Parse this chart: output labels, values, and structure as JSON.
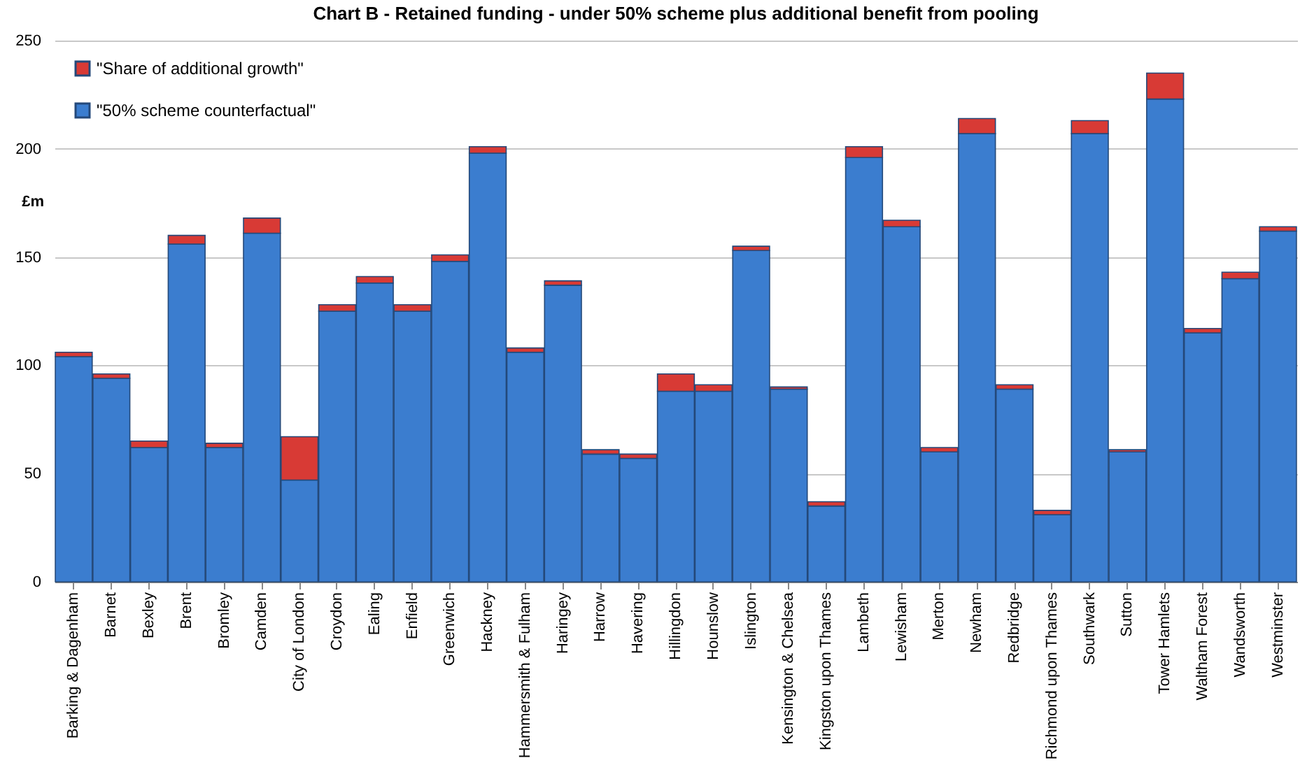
{
  "chart_data": {
    "type": "bar",
    "title": "Chart B - Retained funding - under 50% scheme plus additional benefit from pooling",
    "ylabel": "£m",
    "categories": [
      "Barking & Dagenham",
      "Barnet",
      "Bexley",
      "Brent",
      "Bromley",
      "Camden",
      "City of London",
      "Croydon",
      "Ealing",
      "Enfield",
      "Greenwich",
      "Hackney",
      "Hammersmith & Fulham",
      "Haringey",
      "Harrow",
      "Havering",
      "Hillingdon",
      "Hounslow",
      "Islington",
      "Kensington & Chelsea",
      "Kingston upon Thames",
      "Lambeth",
      "Lewisham",
      "Merton",
      "Newham",
      "Redbridge",
      "Richmond upon Thames",
      "Southwark",
      "Sutton",
      "Tower Hamlets",
      "Waltham Forest",
      "Wandsworth",
      "Westminster"
    ],
    "stacked": true,
    "series": [
      {
        "name": "\"50% scheme counterfactual\"",
        "color": "#3b7dcf",
        "values": [
          104,
          94,
          62,
          156,
          62,
          161,
          47,
          125,
          138,
          125,
          148,
          198,
          106,
          137,
          59,
          57,
          88,
          88,
          153,
          89,
          35,
          196,
          164,
          60,
          207,
          89,
          31,
          207,
          60,
          223,
          115,
          140,
          162
        ]
      },
      {
        "name": "\"Share of additional growth\"",
        "color": "#d83a35",
        "values": [
          2,
          2,
          3,
          4,
          2,
          7,
          20,
          3,
          3,
          3,
          3,
          3,
          2,
          2,
          2,
          2,
          8,
          3,
          2,
          1,
          2,
          5,
          3,
          2,
          7,
          2,
          2,
          6,
          1,
          12,
          2,
          3,
          2
        ]
      }
    ],
    "ylim": [
      0,
      250
    ],
    "yticks": [
      0,
      50,
      100,
      150,
      200,
      250
    ],
    "grid": "y",
    "legend": "top left"
  }
}
